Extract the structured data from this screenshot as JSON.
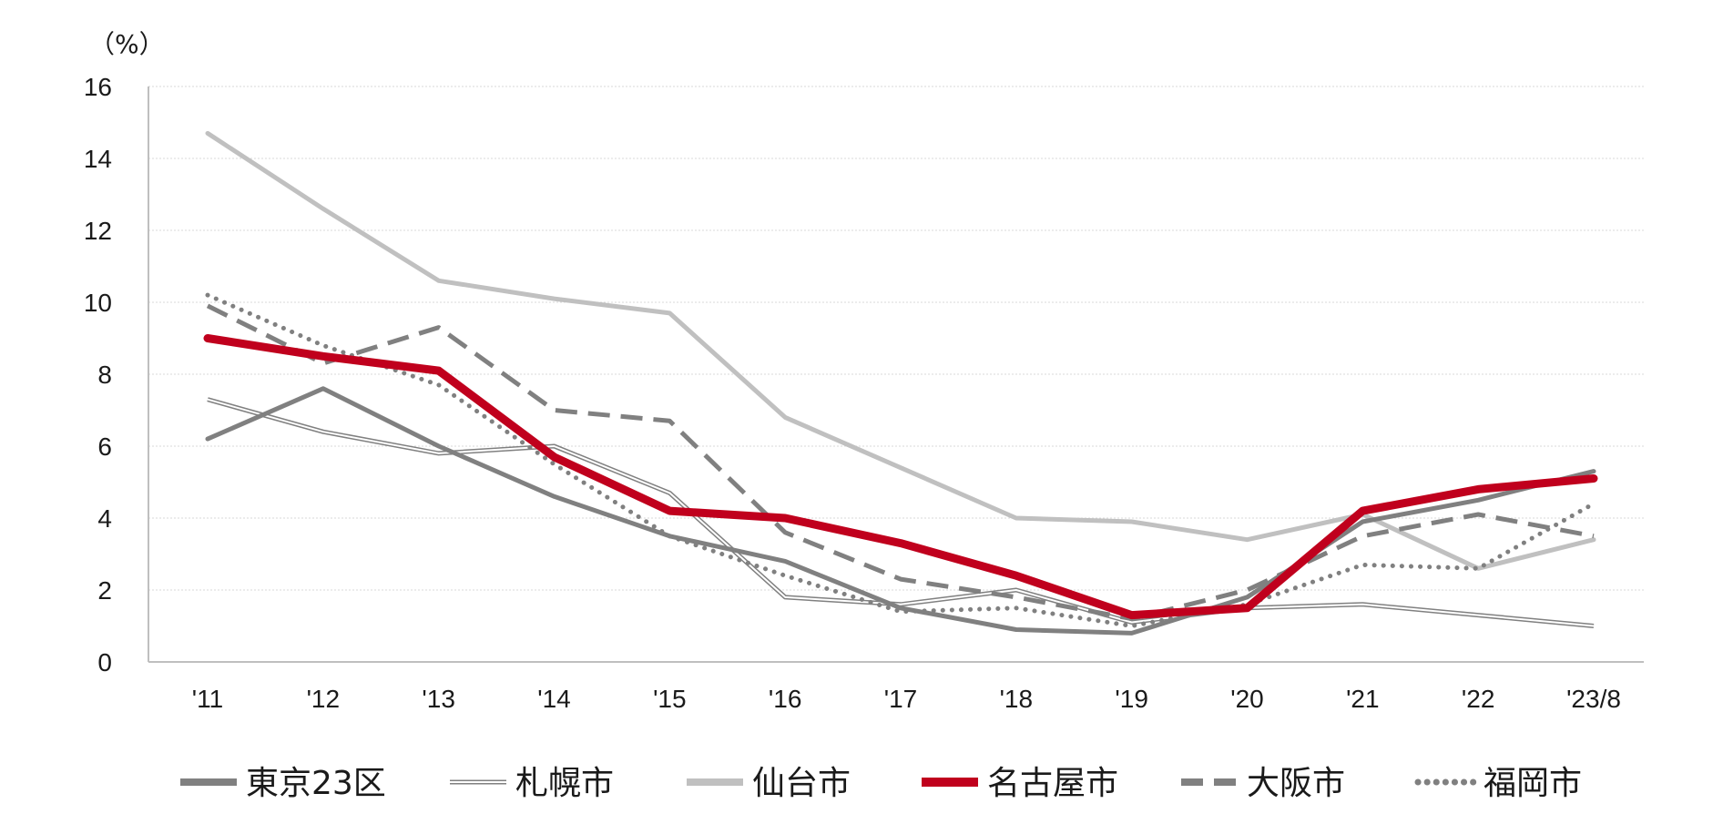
{
  "chart_data": {
    "type": "line",
    "unit_label": "（%）",
    "x": [
      "'11",
      "'12",
      "'13",
      "'14",
      "'15",
      "'16",
      "'17",
      "'18",
      "'19",
      "'20",
      "'21",
      "'22",
      "'23/8"
    ],
    "ylim": [
      0,
      16
    ],
    "yticks": [
      0,
      2,
      4,
      6,
      8,
      10,
      12,
      14,
      16
    ],
    "grid": true,
    "legend_position": "bottom",
    "series": [
      {
        "name": "東京23区",
        "color": "#808080",
        "style": "solid",
        "values": [
          6.2,
          7.6,
          6.0,
          4.6,
          3.5,
          2.8,
          1.5,
          0.9,
          0.8,
          1.8,
          3.9,
          4.5,
          5.3
        ]
      },
      {
        "name": "札幌市",
        "color": "#808080",
        "style": "double",
        "values": [
          7.3,
          6.4,
          5.8,
          6.0,
          4.7,
          1.8,
          1.6,
          2.0,
          1.1,
          1.5,
          1.6,
          1.3,
          1.0
        ]
      },
      {
        "name": "仙台市",
        "color": "#c0c0c0",
        "style": "solid",
        "values": [
          14.7,
          12.6,
          10.6,
          10.1,
          9.7,
          6.8,
          5.4,
          4.0,
          3.9,
          3.4,
          4.1,
          2.6,
          3.4
        ]
      },
      {
        "name": "名古屋市",
        "color": "#c0001d",
        "style": "solid-bold",
        "values": [
          9.0,
          8.5,
          8.1,
          5.7,
          4.2,
          4.0,
          3.3,
          2.4,
          1.3,
          1.5,
          4.2,
          4.8,
          5.1
        ]
      },
      {
        "name": "大阪市",
        "color": "#808080",
        "style": "dashed",
        "values": [
          9.9,
          8.3,
          9.3,
          7.0,
          6.7,
          3.6,
          2.3,
          1.8,
          1.2,
          2.0,
          3.5,
          4.1,
          3.5
        ]
      },
      {
        "name": "福岡市",
        "color": "#808080",
        "style": "dotted",
        "values": [
          10.2,
          8.8,
          7.7,
          5.5,
          3.5,
          2.4,
          1.4,
          1.5,
          1.0,
          1.6,
          2.7,
          2.6,
          4.4
        ]
      }
    ]
  }
}
